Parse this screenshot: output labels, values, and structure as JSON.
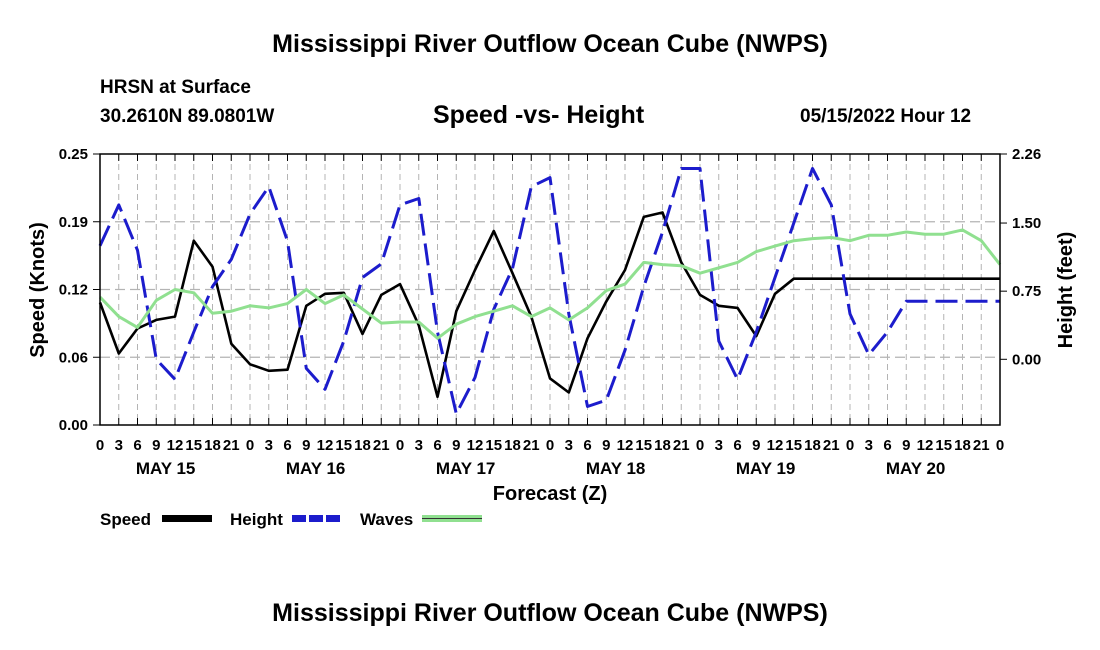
{
  "header": {
    "title": "Mississippi River Outflow Ocean Cube (NWPS)",
    "station_name": "HRSN at Surface",
    "coords": "30.2610N  89.0801W",
    "subtitle": "Speed -vs- Height",
    "run_time": "05/15/2022 Hour 12"
  },
  "footer": {
    "title": "Mississippi River Outflow Ocean Cube (NWPS)"
  },
  "chart_data": {
    "type": "line",
    "xlabel": "Forecast (Z)",
    "ylabel_left": "Speed (Knots)",
    "ylabel_right": "Height (feet)",
    "x_unit": "forecast hours from May 15 00Z",
    "xlim": [
      0,
      144
    ],
    "ylim_left": [
      0,
      0.25
    ],
    "ylim_right": [
      -0.7233,
      2.26
    ],
    "yticks_left": [
      "0.00",
      "0.06",
      "0.12",
      "0.19",
      "0.25"
    ],
    "yticks_left_values": [
      0,
      0.0625,
      0.125,
      0.1875,
      0.25
    ],
    "yticks_right": [
      "0.00",
      "0.75",
      "1.50",
      "2.26"
    ],
    "yticks_right_values": [
      0,
      0.75,
      1.5,
      2.26
    ],
    "hour_tick_labels": [
      "0",
      "3",
      "6",
      "9",
      "12",
      "15",
      "18",
      "21"
    ],
    "day_labels": [
      "MAY 15",
      "MAY 16",
      "MAY 17",
      "MAY 18",
      "MAY 19",
      "MAY 20"
    ],
    "grid": true,
    "legend_position": "bottom-left",
    "series": [
      {
        "name": "Speed",
        "axis": "left",
        "color": "#000000",
        "style": "solid",
        "x": [
          0,
          3,
          6,
          9,
          12,
          15,
          18,
          21,
          24,
          27,
          30,
          33,
          36,
          39,
          42,
          45,
          48,
          51,
          54,
          57,
          60,
          63,
          66,
          69,
          72,
          75,
          78,
          81,
          84,
          87,
          90,
          93,
          96,
          99,
          102,
          105,
          108,
          111,
          114,
          117,
          120,
          123,
          126,
          129,
          132,
          135,
          138,
          141,
          144
        ],
        "values": [
          0.113,
          0.066,
          0.089,
          0.097,
          0.1,
          0.17,
          0.146,
          0.075,
          0.056,
          0.05,
          0.051,
          0.11,
          0.121,
          0.122,
          0.084,
          0.12,
          0.13,
          0.092,
          0.026,
          0.105,
          0.143,
          0.179,
          0.14,
          0.1,
          0.043,
          0.03,
          0.08,
          0.114,
          0.143,
          0.192,
          0.196,
          0.15,
          0.12,
          0.11,
          0.108,
          0.082,
          0.121,
          0.135,
          0.135,
          0.135,
          0.135,
          0.135,
          0.135,
          0.135,
          0.135,
          0.135,
          0.135,
          0.135,
          0.135
        ]
      },
      {
        "name": "Height",
        "axis": "right",
        "color": "#1c1ccc",
        "style": "dashed",
        "x": [
          0,
          3,
          6,
          9,
          12,
          15,
          18,
          21,
          24,
          27,
          30,
          33,
          36,
          39,
          42,
          45,
          48,
          51,
          54,
          57,
          60,
          63,
          66,
          69,
          72,
          75,
          78,
          81,
          84,
          87,
          90,
          93,
          96,
          99,
          102,
          105,
          108,
          111,
          114,
          117,
          120,
          123,
          126,
          129,
          132,
          135,
          138,
          141,
          144
        ],
        "values": [
          1.25,
          1.7,
          1.2,
          0.0,
          -0.22,
          0.3,
          0.8,
          1.1,
          1.6,
          1.9,
          1.3,
          -0.1,
          -0.33,
          0.2,
          0.9,
          1.05,
          1.7,
          1.77,
          0.3,
          -0.6,
          -0.2,
          0.55,
          1.0,
          1.9,
          2.0,
          0.5,
          -0.52,
          -0.45,
          0.1,
          0.8,
          1.4,
          2.1,
          2.1,
          0.2,
          -0.22,
          0.3,
          0.9,
          1.5,
          2.1,
          1.7,
          0.5,
          0.05,
          0.3,
          0.64,
          0.64,
          0.64,
          0.64,
          0.64,
          0.64
        ]
      },
      {
        "name": "Waves",
        "axis": "left",
        "color": "#90e090",
        "style": "solid",
        "x": [
          0,
          3,
          6,
          9,
          12,
          15,
          18,
          21,
          24,
          27,
          30,
          33,
          36,
          39,
          42,
          45,
          48,
          51,
          54,
          57,
          60,
          63,
          66,
          69,
          72,
          75,
          78,
          81,
          84,
          87,
          90,
          93,
          96,
          99,
          102,
          105,
          108,
          111,
          114,
          117,
          120,
          123,
          126,
          129,
          132,
          135,
          138,
          141,
          144
        ],
        "values": [
          0.118,
          0.1,
          0.09,
          0.115,
          0.125,
          0.122,
          0.103,
          0.105,
          0.11,
          0.108,
          0.112,
          0.125,
          0.112,
          0.12,
          0.107,
          0.094,
          0.095,
          0.095,
          0.08,
          0.093,
          0.1,
          0.105,
          0.11,
          0.1,
          0.108,
          0.097,
          0.108,
          0.124,
          0.13,
          0.15,
          0.148,
          0.147,
          0.14,
          0.145,
          0.15,
          0.16,
          0.165,
          0.17,
          0.172,
          0.173,
          0.17,
          0.175,
          0.175,
          0.178,
          0.176,
          0.176,
          0.18,
          0.17,
          0.148
        ]
      }
    ]
  }
}
